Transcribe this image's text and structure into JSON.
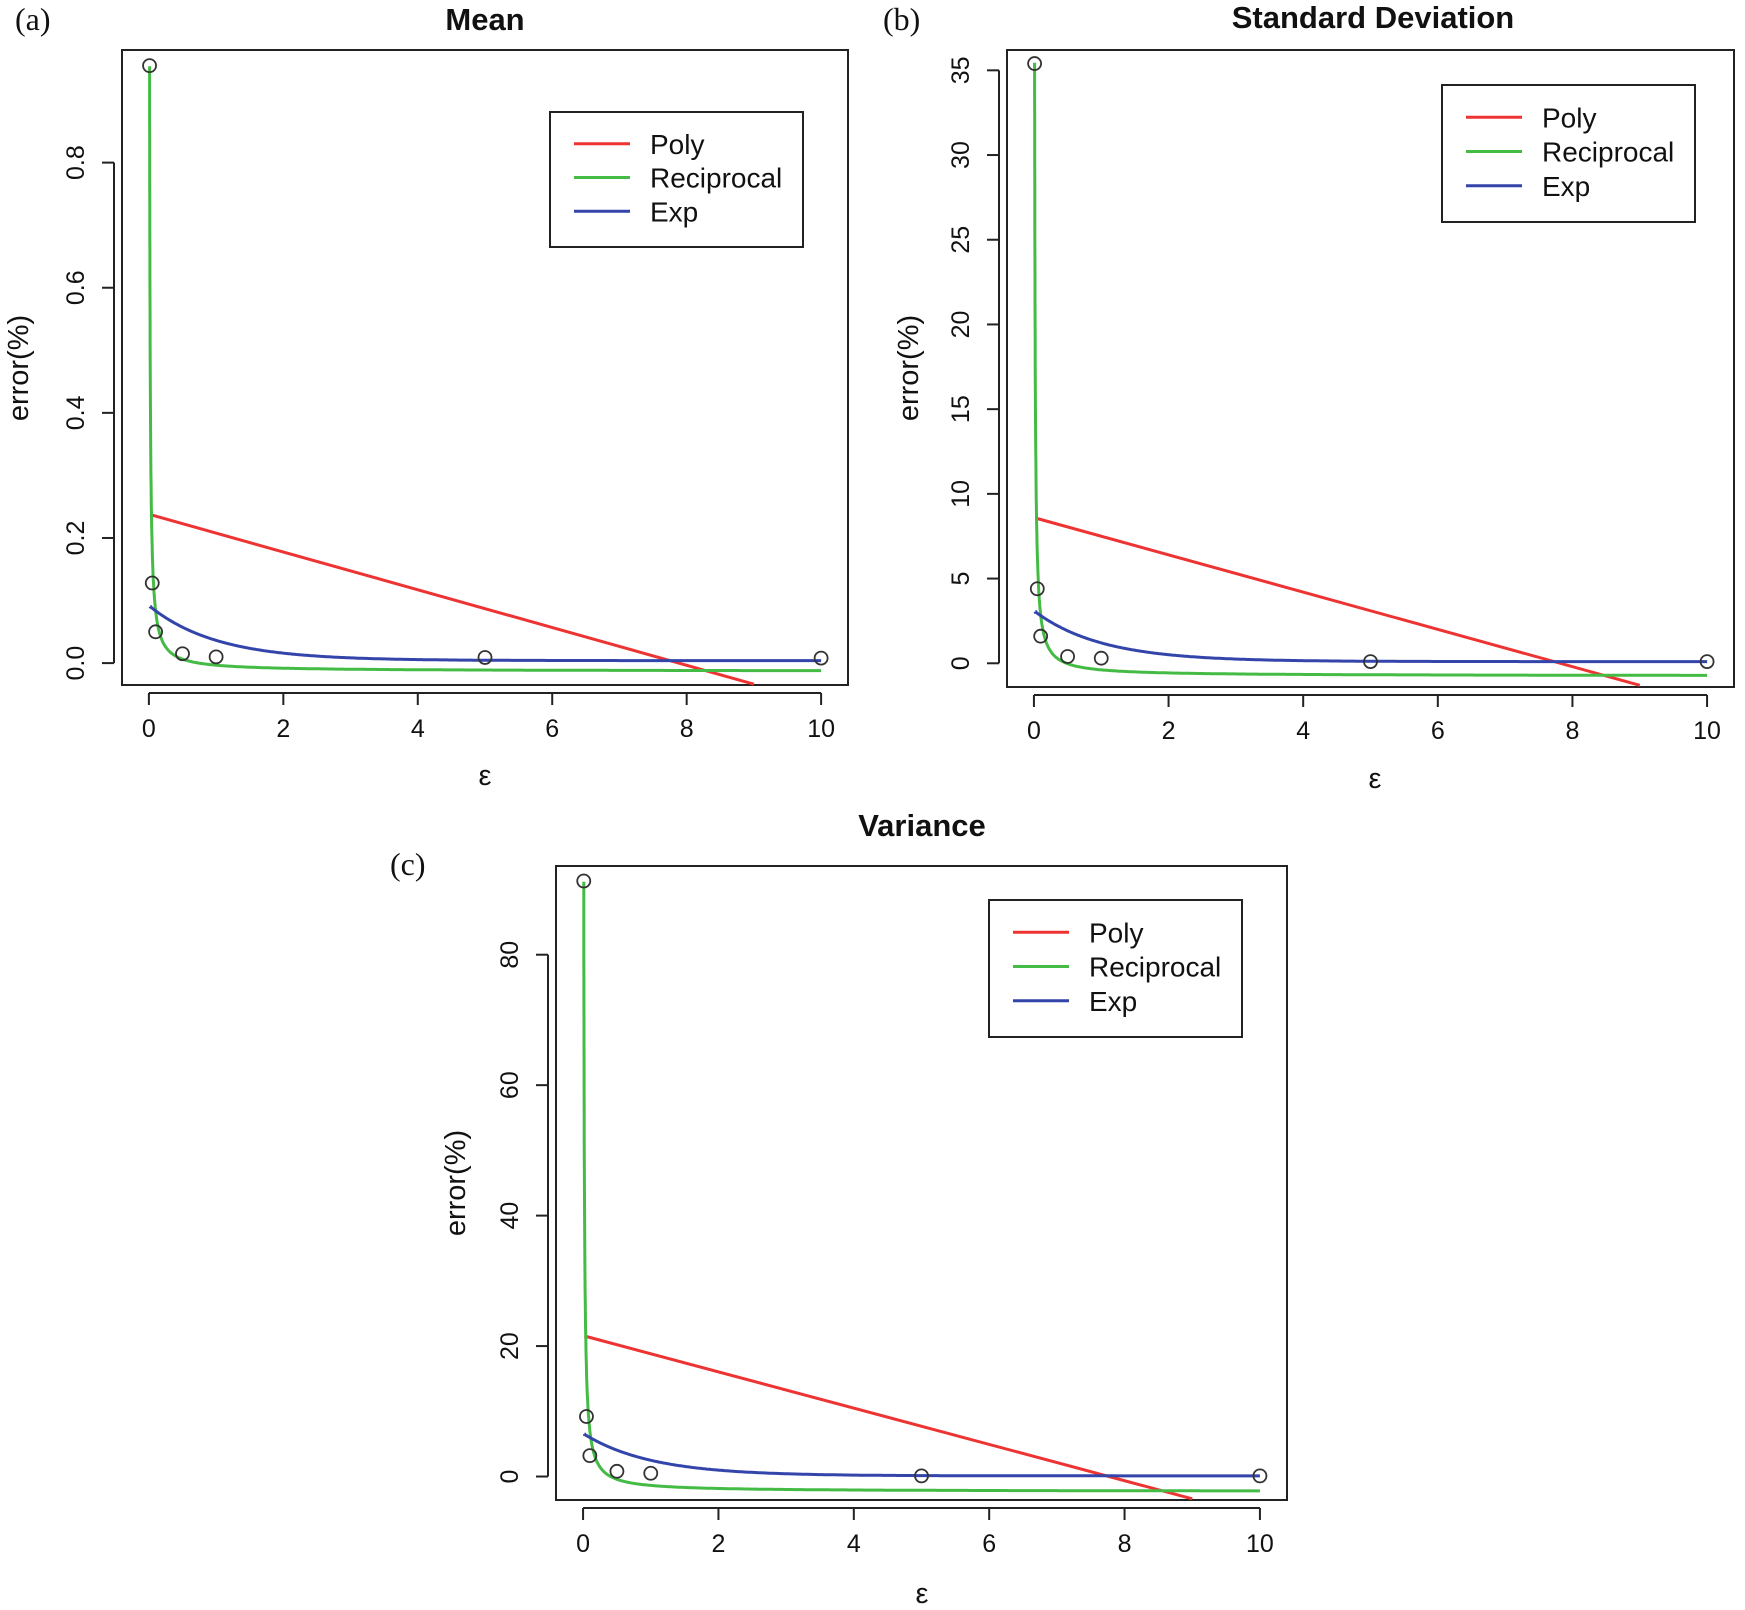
{
  "chart_data": [
    {
      "type": "line",
      "panel_label": "(a)",
      "title": "Mean",
      "xlabel": "ε",
      "ylabel": "error(%)",
      "xlim": [
        -0.4,
        10.4
      ],
      "ylim": [
        -0.035,
        0.98
      ],
      "x_ticks": [
        0,
        2,
        4,
        6,
        8,
        10
      ],
      "x_tick_labels": [
        "0",
        "2",
        "4",
        "6",
        "8",
        "10"
      ],
      "y_ticks": [
        0.0,
        0.2,
        0.4,
        0.6,
        0.8
      ],
      "y_tick_labels": [
        "0.0",
        "0.2",
        "0.4",
        "0.6",
        "0.8"
      ],
      "legend": "top-right",
      "points": {
        "x": [
          0.01,
          0.05,
          0.1,
          0.5,
          1,
          5,
          10
        ],
        "y": [
          0.955,
          0.128,
          0.05,
          0.015,
          0.01,
          0.009,
          0.008
        ]
      },
      "series": [
        {
          "name": "Poly",
          "color": "#ee3333",
          "model": "poly",
          "intercept": 0.238,
          "slope": -0.0302,
          "x_range": [
            0.02,
            9.0
          ]
        },
        {
          "name": "Reciprocal",
          "color": "#44bb44",
          "model": "reciprocal",
          "a": -0.013,
          "b": 0.00967,
          "x_range": [
            0.01,
            10
          ]
        },
        {
          "name": "Exp",
          "color": "#3344aa",
          "model": "exp",
          "c": 0.004,
          "a": 0.088,
          "k": 1.0,
          "x_range": [
            0.02,
            10
          ]
        }
      ]
    },
    {
      "type": "line",
      "panel_label": "(b)",
      "title": "Standard Deviation",
      "xlabel": "ε",
      "ylabel": "error(%)",
      "xlim": [
        -0.4,
        10.4
      ],
      "ylim": [
        -1.4,
        36.2
      ],
      "x_ticks": [
        0,
        2,
        4,
        6,
        8,
        10
      ],
      "x_tick_labels": [
        "0",
        "2",
        "4",
        "6",
        "8",
        "10"
      ],
      "y_ticks": [
        0,
        5,
        10,
        15,
        20,
        25,
        30,
        35
      ],
      "y_tick_labels": [
        "0",
        "5",
        "10",
        "15",
        "20",
        "25",
        "30",
        "35"
      ],
      "legend": "top-right",
      "points": {
        "x": [
          0.01,
          0.05,
          0.1,
          0.5,
          1,
          5,
          10
        ],
        "y": [
          35.4,
          4.4,
          1.6,
          0.4,
          0.3,
          0.1,
          0.1
        ]
      },
      "series": [
        {
          "name": "Poly",
          "color": "#ee3333",
          "model": "poly",
          "intercept": 8.6,
          "slope": -1.1,
          "x_range": [
            0.02,
            9.0
          ]
        },
        {
          "name": "Reciprocal",
          "color": "#44bb44",
          "model": "reciprocal",
          "a": -0.75,
          "b": 0.362,
          "x_range": [
            0.01,
            10
          ]
        },
        {
          "name": "Exp",
          "color": "#3344aa",
          "model": "exp",
          "c": 0.1,
          "a": 3.0,
          "k": 1.0,
          "x_range": [
            0.02,
            10
          ]
        }
      ]
    },
    {
      "type": "line",
      "panel_label": "(c)",
      "title": "Variance",
      "xlabel": "ε",
      "ylabel": "error(%)",
      "xlim": [
        -0.4,
        10.4
      ],
      "ylim": [
        -3.6,
        93.6
      ],
      "x_ticks": [
        0,
        2,
        4,
        6,
        8,
        10
      ],
      "x_tick_labels": [
        "0",
        "2",
        "4",
        "6",
        "8",
        "10"
      ],
      "y_ticks": [
        0,
        20,
        40,
        60,
        80
      ],
      "y_tick_labels": [
        "0",
        "20",
        "40",
        "60",
        "80"
      ],
      "legend": "top-right",
      "points": {
        "x": [
          0.01,
          0.05,
          0.1,
          0.5,
          1,
          5,
          10
        ],
        "y": [
          91.3,
          9.2,
          3.2,
          0.8,
          0.5,
          0.1,
          0.1
        ]
      },
      "series": [
        {
          "name": "Poly",
          "color": "#ee3333",
          "model": "poly",
          "intercept": 21.6,
          "slope": -2.78,
          "x_range": [
            0.02,
            9.0
          ]
        },
        {
          "name": "Reciprocal",
          "color": "#44bb44",
          "model": "reciprocal",
          "a": -2.3,
          "b": 0.935,
          "x_range": [
            0.01,
            10
          ]
        },
        {
          "name": "Exp",
          "color": "#3344aa",
          "model": "exp",
          "c": 0.1,
          "a": 6.5,
          "k": 1.0,
          "x_range": [
            0.02,
            10
          ]
        }
      ]
    }
  ]
}
